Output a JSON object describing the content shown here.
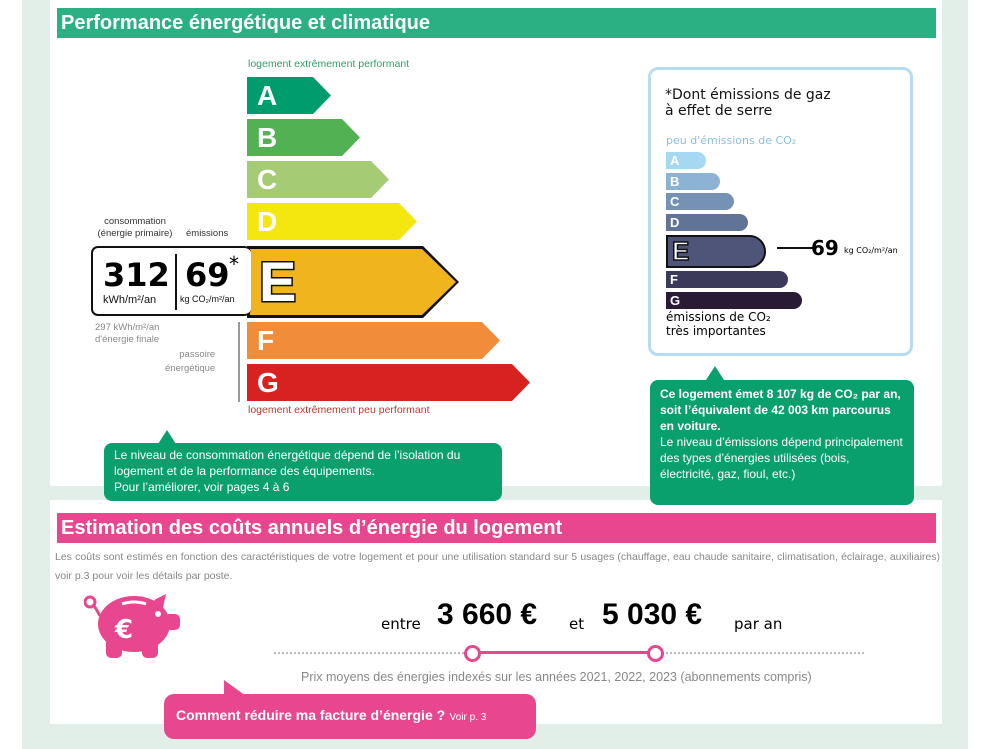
{
  "section1": {
    "title": "Performance énergétique et climatique",
    "color": "#2bb084"
  },
  "dpe": {
    "top_label": "logement extrêmement performant",
    "bottom_label": "logement extrêmement peu performant",
    "classes": [
      {
        "letter": "A",
        "color": "#009c6d"
      },
      {
        "letter": "B",
        "color": "#52b153"
      },
      {
        "letter": "C",
        "color": "#a5cc74"
      },
      {
        "letter": "D",
        "color": "#f4e70f"
      },
      {
        "letter": "E",
        "color": "#f0b41c"
      },
      {
        "letter": "F",
        "color": "#f18d38"
      },
      {
        "letter": "G",
        "color": "#d7221f"
      }
    ],
    "current_class": "E",
    "consumption_label": "consommation\n(énergie primaire)",
    "emissions_label": "émissions",
    "consumption_value": "312",
    "consumption_unit": "kWh/m²/an",
    "emissions_value": "69",
    "emissions_star": "*",
    "emissions_unit": "kg CO₂/m²/an",
    "final_energy": "297 kWh/m²/an\nd'énergie finale",
    "passoire": "passoire\nénergétique"
  },
  "tip_left": {
    "line1": "Le niveau de consommation énergétique dépend de l’isolation du",
    "line2": "logement et de la performance des équipements.",
    "line3": "Pour l’améliorer, voir pages 4 à 6"
  },
  "ges": {
    "title": "*Dont émissions de gaz\nà effet de serre",
    "top_label": "peu d'émissions de CO₂",
    "bottom_label": "émissions de CO₂\ntrès importantes",
    "classes": [
      {
        "letter": "A",
        "color": "#a6d8f4"
      },
      {
        "letter": "B",
        "color": "#8db3d4"
      },
      {
        "letter": "C",
        "color": "#7592b5"
      },
      {
        "letter": "D",
        "color": "#617497"
      },
      {
        "letter": "E",
        "color": "#4e5579"
      },
      {
        "letter": "F",
        "color": "#3b3a5a"
      },
      {
        "letter": "G",
        "color": "#291a35"
      }
    ],
    "current_class": "E",
    "value": "69",
    "unit": "kg CO₂/m²/an"
  },
  "tip_right": {
    "bold": "Ce logement émet 8 107 kg de CO₂ par an, soit l’équivalent de 42 003 km parcourus en voiture.",
    "text": "Le niveau d’émissions dépend principalement des types d’énergies utilisées (bois, électricité, gaz, fioul, etc.)"
  },
  "section2": {
    "title": "Estimation des coûts annuels d’énergie du logement",
    "color": "#e8478f",
    "description": "Les coûts sont estimés en fonction des caractéristiques de votre logement et pour une utilisation standard sur 5 usages (chauffage, eau chaude sanitaire, climatisation, éclairage, auxiliaires) voir p.3 pour voir les détails par poste.",
    "between": "entre",
    "min": "3 660 €",
    "and": "et",
    "max": "5 030 €",
    "per_year": "par an",
    "prices_note": "Prix moyens des énergies indexés sur les années 2021, 2022, 2023 (abonnements compris)",
    "cta": "Comment réduire ma facture d’énergie ?",
    "cta_ref": "Voir p. 3",
    "icon": "piggy-bank-euro-icon"
  }
}
